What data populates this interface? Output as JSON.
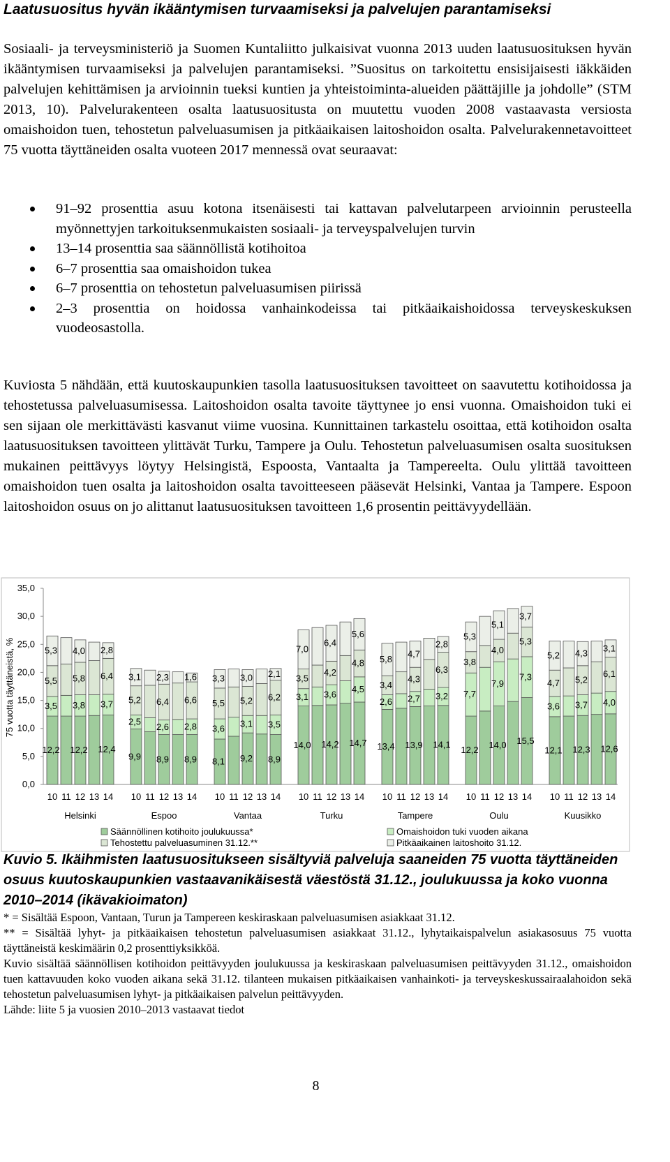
{
  "heading": "Laatusuositus hyvän ikääntymisen turvaamiseksi ja palvelujen parantamiseksi",
  "intro": "Sosiaali- ja terveysministeriö ja Suomen Kuntaliitto julkaisivat vuonna 2013 uuden laatusuosituksen hyvän ikääntymisen turvaamiseksi ja palvelujen parantamiseksi. ”Suositus on tarkoitettu ensisijaisesti iäkkäiden palvelujen kehittämisen ja arvioinnin tueksi kuntien ja yhteistoiminta-alueiden päättäjille ja johdolle” (STM 2013, 10). Palvelurakenteen osalta laatusuositusta on muutettu vuoden 2008 vastaavasta versiosta omaishoidon tuen, tehostetun palveluasumisen ja pitkäaikaisen laitoshoidon osalta. Palvelurakennetavoitteet 75 vuotta täyttäneiden osalta vuoteen 2017 mennessä ovat seuraavat:",
  "bullets": [
    "91–92 prosenttia asuu kotona itsenäisesti tai kattavan palvelutarpeen arvioinnin perusteella myönnettyjen tarkoituksenmukaisten sosiaali- ja terveyspalvelujen turvin",
    "13–14 prosenttia saa säännöllistä kotihoitoa",
    "6–7 prosenttia saa omaishoidon tukea",
    "6–7 prosenttia on tehostetun palveluasumisen piirissä",
    "2–3 prosenttia on hoidossa vanhainkodeissa tai pitkäaikaishoidossa terveyskeskuksen vuodeosastolla."
  ],
  "analysis": "Kuviosta 5 nähdään, että kuutoskaupunkien tasolla laatusuosituksen tavoitteet on saavutettu kotihoidossa ja tehostetussa palveluasumisessa. Laitoshoidon osalta tavoite täyttynee jo ensi vuonna. Omaishoidon tuki ei sen sijaan ole merkittävästi kasvanut viime vuosina. Kunnittainen tarkastelu osoittaa, että kotihoidon osalta laatusuosituksen tavoitteen ylittävät Turku, Tampere ja Oulu. Tehostetun palveluasumisen osalta suosituksen mukainen peittävyys löytyy Helsingistä, Espoosta, Vantaalta ja Tampereelta. Oulu ylittää tavoitteen omaishoidon tuen osalta ja laitoshoidon osalta tavoitteeseen pääsevät Helsinki, Vantaa ja Tampere. Espoon laitoshoidon osuus on jo alittanut laatusuosituksen tavoitteen 1,6 prosentin peittävyydellään.",
  "chart_data": {
    "type": "stacked_bar",
    "ylabel": "75 vuotta täyttäneistä, %",
    "groups": [
      "Helsinki",
      "Espoo",
      "Vantaa",
      "Turku",
      "Tampere",
      "Oulu",
      "Kuusikko"
    ],
    "categories": [
      "10",
      "11",
      "12",
      "13",
      "14",
      "10",
      "11",
      "12",
      "13",
      "14",
      "10",
      "11",
      "12",
      "13",
      "14",
      "10",
      "11",
      "12",
      "13",
      "14",
      "10",
      "11",
      "12",
      "13",
      "14",
      "10",
      "11",
      "12",
      "13",
      "14",
      "10",
      "11",
      "12",
      "13",
      "14"
    ],
    "ylim": [
      0,
      35
    ],
    "yticks": [
      {
        "value": 0,
        "label": "0,0"
      },
      {
        "value": 5,
        "label": "5,0"
      },
      {
        "value": 10,
        "label": "10,0"
      },
      {
        "value": 15,
        "label": "15,0"
      },
      {
        "value": 20,
        "label": "20,0"
      },
      {
        "value": 25,
        "label": "25,0"
      },
      {
        "value": 30,
        "label": "30,0"
      },
      {
        "value": 35,
        "label": "35,0"
      }
    ],
    "grid": false,
    "series": [
      {
        "name": "Säännöllinen kotihoito joulukuussa*",
        "color": "#9fcc9c",
        "values": [
          12.2,
          12.2,
          12.2,
          12.3,
          12.4,
          9.9,
          9.4,
          8.9,
          8.9,
          8.9,
          8.1,
          8.6,
          9.2,
          9.0,
          8.9,
          14.0,
          14.1,
          14.2,
          14.5,
          14.7,
          13.4,
          13.6,
          13.9,
          14.0,
          14.1,
          12.2,
          13.1,
          14.0,
          14.8,
          15.5,
          12.1,
          12.2,
          12.3,
          12.5,
          12.6
        ],
        "value_labels": [
          "12,2",
          null,
          "12,2",
          null,
          "12,4",
          "9,9",
          null,
          "8,9",
          null,
          "8,9",
          "8,1",
          null,
          "9,2",
          null,
          "8,9",
          "14,0",
          null,
          "14,2",
          null,
          "14,7",
          "13,4",
          null,
          "13,9",
          null,
          "14,1",
          "12,2",
          null,
          "14,0",
          null,
          "15,5",
          "12,1",
          null,
          "12,3",
          null,
          "12,6"
        ]
      },
      {
        "name": "Omaishoidon tuki vuoden aikana",
        "color": "#c8edc2",
        "values": [
          3.5,
          3.7,
          3.8,
          3.7,
          3.7,
          2.5,
          2.5,
          2.6,
          2.7,
          2.8,
          3.6,
          3.4,
          3.1,
          3.3,
          3.5,
          3.1,
          3.3,
          3.6,
          4.0,
          4.5,
          2.6,
          2.6,
          2.7,
          3.0,
          3.2,
          7.7,
          7.8,
          7.9,
          7.6,
          7.3,
          3.6,
          3.6,
          3.7,
          3.8,
          4.0
        ],
        "value_labels": [
          "3,5",
          null,
          "3,8",
          null,
          "3,7",
          "2,5",
          null,
          "2,6",
          null,
          "2,8",
          "3,6",
          null,
          "3,1",
          null,
          "3,5",
          "3,1",
          null,
          "3,6",
          null,
          "4,5",
          "2,6",
          null,
          "2,7",
          null,
          "3,2",
          "7,7",
          null,
          "7,9",
          null,
          "7,3",
          "3,6",
          null,
          "3,7",
          null,
          "4,0"
        ]
      },
      {
        "name": "Tehostettu palveluasuminen 31.12.**",
        "color": "#dbe6d4",
        "values": [
          5.5,
          5.6,
          5.8,
          6.1,
          6.4,
          5.2,
          5.8,
          6.4,
          6.5,
          6.6,
          5.5,
          5.4,
          5.2,
          5.7,
          6.2,
          3.5,
          3.9,
          4.2,
          4.5,
          4.8,
          3.4,
          3.9,
          4.3,
          5.3,
          6.3,
          3.8,
          3.9,
          4.0,
          4.6,
          5.3,
          4.7,
          5.0,
          5.2,
          5.6,
          6.1
        ],
        "value_labels": [
          "5,5",
          null,
          "5,8",
          null,
          "6,4",
          "5,2",
          null,
          "6,4",
          null,
          "6,6",
          "5,5",
          null,
          "5,2",
          null,
          "6,2",
          "3,5",
          null,
          "4,2",
          null,
          "4,8",
          "3,4",
          null,
          "4,3",
          null,
          "6,3",
          "3,8",
          null,
          "4,0",
          null,
          "5,3",
          "4,7",
          null,
          "5,2",
          null,
          "6,1"
        ]
      },
      {
        "name": "Pitkäaikainen laitoshoito 31.12.",
        "color": "#ebefe8",
        "values": [
          5.3,
          4.7,
          4.0,
          3.3,
          2.8,
          3.1,
          2.7,
          2.3,
          2.0,
          1.6,
          3.3,
          3.2,
          3.0,
          2.6,
          2.1,
          7.0,
          6.7,
          6.4,
          6.0,
          5.6,
          5.8,
          5.3,
          4.7,
          3.8,
          2.8,
          5.3,
          5.2,
          5.1,
          4.4,
          3.7,
          5.2,
          4.8,
          4.3,
          3.7,
          3.1
        ],
        "value_labels": [
          "5,3",
          null,
          "4,0",
          null,
          "2,8",
          "3,1",
          null,
          "2,3",
          null,
          "1,6",
          "3,3",
          null,
          "3,0",
          null,
          "2,1",
          "7,0",
          null,
          "6,4",
          null,
          "5,6",
          "5,8",
          null,
          "4,7",
          null,
          "2,8",
          "5,3",
          null,
          "5,1",
          null,
          "3,7",
          "5,2",
          null,
          "4,3",
          null,
          "3,1"
        ]
      }
    ]
  },
  "caption": "Kuvio 5. Ikäihmisten laatusuositukseen sisältyviä palveluja saaneiden 75 vuotta täyttäneiden osuus kuutoskaupunkien vastaavanikäisestä väestöstä 31.12., joulukuussa ja koko vuonna 2010–2014 (ikävakioimaton)",
  "notes": [
    "* = Sisältää Espoon, Vantaan, Turun ja Tampereen keskiraskaan palveluasumisen asiakkaat 31.12.",
    "** = Sisältää lyhyt- ja pitkäaikaisen tehostetun palveluasumisen asiakkaat 31.12., lyhytaikaispalvelun asiakasosuus 75 vuotta täyttäneistä keskimäärin 0,2 prosenttiyksikköä.",
    "Kuvio sisältää säännöllisen kotihoidon peittävyyden joulukuussa ja keskiraskaan palveluasumisen peittävyyden 31.12., omaishoidon tuen kattavuuden koko vuoden aikana sekä 31.12. tilanteen mukaisen pitkäaikaisen vanhainkoti- ja terveyskeskussairaalahoidon sekä tehostetun palveluasumisen lyhyt- ja pitkäaikaisen palvelun peittävyyden.",
    "Lähde: liite 5 ja vuosien 2010–2013 vastaavat tiedot"
  ],
  "page_number": "8"
}
